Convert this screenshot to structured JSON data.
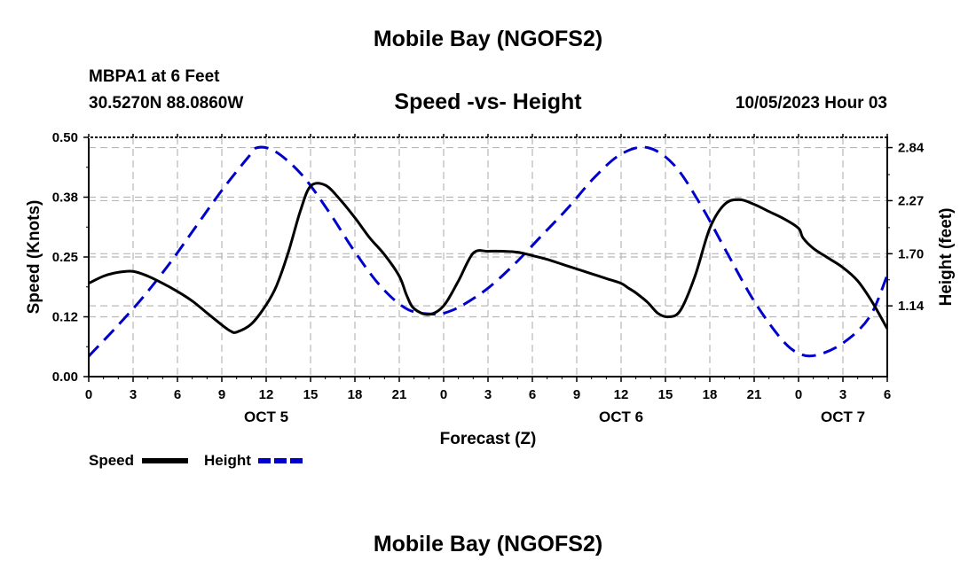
{
  "header": {
    "title": "Mobile Bay (NGOFS2)",
    "station": "MBPA1 at 6 Feet",
    "coordinates": "30.5270N  88.0860W",
    "subtitle": "Speed -vs- Height",
    "datetime": "10/05/2023 Hour 03"
  },
  "footer": {
    "title": "Mobile Bay (NGOFS2)"
  },
  "colors": {
    "speed": "#000000",
    "height": "#0000cc",
    "grid": "#b8b8b8"
  },
  "chart_data": {
    "type": "line",
    "xlabel": "Forecast (Z)",
    "ylabel": "Speed (Knots)",
    "y2label": "Height (feet)",
    "xlim": [
      0,
      54
    ],
    "ylim": [
      0,
      0.5
    ],
    "y2lim": [
      0.38,
      2.95
    ],
    "x_ticks": [
      0,
      3,
      6,
      9,
      12,
      15,
      18,
      21,
      24,
      27,
      30,
      33,
      36,
      39,
      42,
      45,
      48,
      51,
      54
    ],
    "x_tick_labels": [
      "0",
      "3",
      "6",
      "9",
      "12",
      "15",
      "18",
      "21",
      "0",
      "3",
      "6",
      "9",
      "12",
      "15",
      "18",
      "21",
      "0",
      "3",
      "6"
    ],
    "date_labels": [
      {
        "x": 12,
        "label": "OCT 5"
      },
      {
        "x": 36,
        "label": "OCT 6"
      },
      {
        "x": 51,
        "label": "OCT 7"
      }
    ],
    "y_ticks": [
      0.0,
      0.125,
      0.25,
      0.375,
      0.5
    ],
    "y_tick_labels": [
      "0.00",
      "0.12",
      "0.25",
      "0.38",
      "0.50"
    ],
    "y2_ticks": [
      1.14,
      1.7,
      2.27,
      2.84
    ],
    "y2_tick_labels": [
      "1.14",
      "1.70",
      "2.27",
      "2.84"
    ],
    "legend": [
      {
        "name": "Speed",
        "style": "solid"
      },
      {
        "name": "Height",
        "style": "dashed"
      }
    ],
    "series": [
      {
        "name": "Speed",
        "axis": "left",
        "x": [
          0,
          1,
          2,
          3,
          4,
          5,
          6,
          7,
          8,
          9,
          9.6,
          10,
          11,
          12,
          12.7,
          13.5,
          14.3,
          15,
          16,
          17,
          18,
          19,
          20,
          21,
          21.5,
          22,
          23,
          24,
          25,
          26,
          27,
          28,
          29,
          30,
          31,
          32,
          33,
          34,
          35,
          36,
          36.5,
          37,
          37.8,
          38.5,
          39.2,
          40,
          41,
          42,
          43,
          44,
          45,
          46,
          47,
          48,
          48.3,
          49,
          50,
          51,
          52,
          53,
          54
        ],
        "y": [
          0.195,
          0.21,
          0.218,
          0.22,
          0.21,
          0.195,
          0.178,
          0.158,
          0.133,
          0.108,
          0.095,
          0.093,
          0.11,
          0.15,
          0.19,
          0.26,
          0.345,
          0.398,
          0.4,
          0.37,
          0.332,
          0.29,
          0.255,
          0.21,
          0.17,
          0.142,
          0.13,
          0.148,
          0.2,
          0.258,
          0.262,
          0.262,
          0.26,
          0.253,
          0.245,
          0.235,
          0.225,
          0.215,
          0.205,
          0.195,
          0.185,
          0.175,
          0.155,
          0.132,
          0.125,
          0.138,
          0.21,
          0.31,
          0.36,
          0.37,
          0.36,
          0.345,
          0.33,
          0.31,
          0.29,
          0.268,
          0.248,
          0.228,
          0.2,
          0.155,
          0.1
        ],
        "note": "speed values estimated from plotted curve"
      },
      {
        "name": "Height",
        "axis": "right",
        "x": [
          0,
          1.8,
          3.6,
          5.4,
          7.2,
          9,
          10.8,
          11.4,
          12.6,
          14.4,
          16.2,
          18,
          19.8,
          21.6,
          23.4,
          24,
          25.2,
          27,
          28.8,
          30.6,
          32.4,
          34.2,
          36,
          37.8,
          39.6,
          41.4,
          43.2,
          45,
          46.8,
          48,
          49.2,
          51,
          52.8,
          54
        ],
        "y": [
          0.6,
          0.9,
          1.22,
          1.58,
          1.98,
          2.38,
          2.74,
          2.84,
          2.8,
          2.55,
          2.16,
          1.72,
          1.34,
          1.1,
          1.05,
          1.06,
          1.14,
          1.33,
          1.59,
          1.89,
          2.19,
          2.52,
          2.77,
          2.84,
          2.65,
          2.22,
          1.7,
          1.19,
          0.79,
          0.63,
          0.61,
          0.74,
          1.02,
          1.47
        ],
        "note": "height values estimated from plotted curve"
      }
    ]
  }
}
